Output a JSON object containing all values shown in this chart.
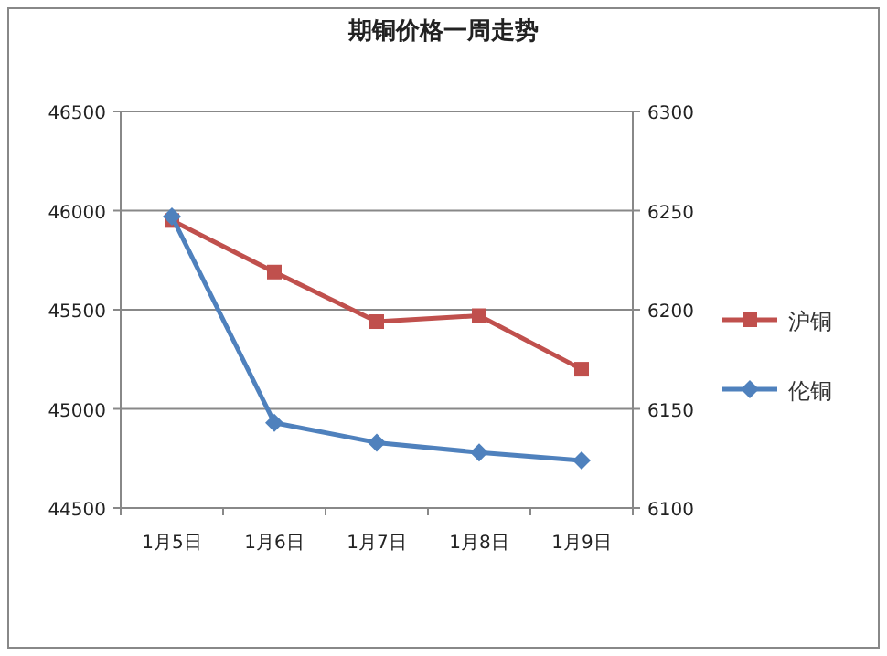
{
  "chart_data": {
    "type": "line",
    "title": "期铜价格一周走势",
    "categories": [
      "1月5日",
      "1月6日",
      "1月7日",
      "1月8日",
      "1月9日"
    ],
    "series": [
      {
        "name": "沪铜",
        "color": "#c0504d",
        "marker": "square",
        "values": [
          45950,
          45690,
          45440,
          45470,
          45200
        ]
      },
      {
        "name": "伦铜",
        "color": "#4f81bd",
        "marker": "diamond",
        "axis": "y2",
        "values": [
          6247,
          6143,
          6133,
          6128,
          6124
        ]
      }
    ],
    "ylim": [
      44500,
      46500
    ],
    "yticks": [
      44500,
      45000,
      45500,
      46000,
      46500
    ],
    "y2lim": [
      6100,
      6300
    ],
    "y2ticks": [
      6100,
      6150,
      6200,
      6250,
      6300
    ],
    "grid": "y",
    "legend": "right",
    "line_style": "solid"
  }
}
